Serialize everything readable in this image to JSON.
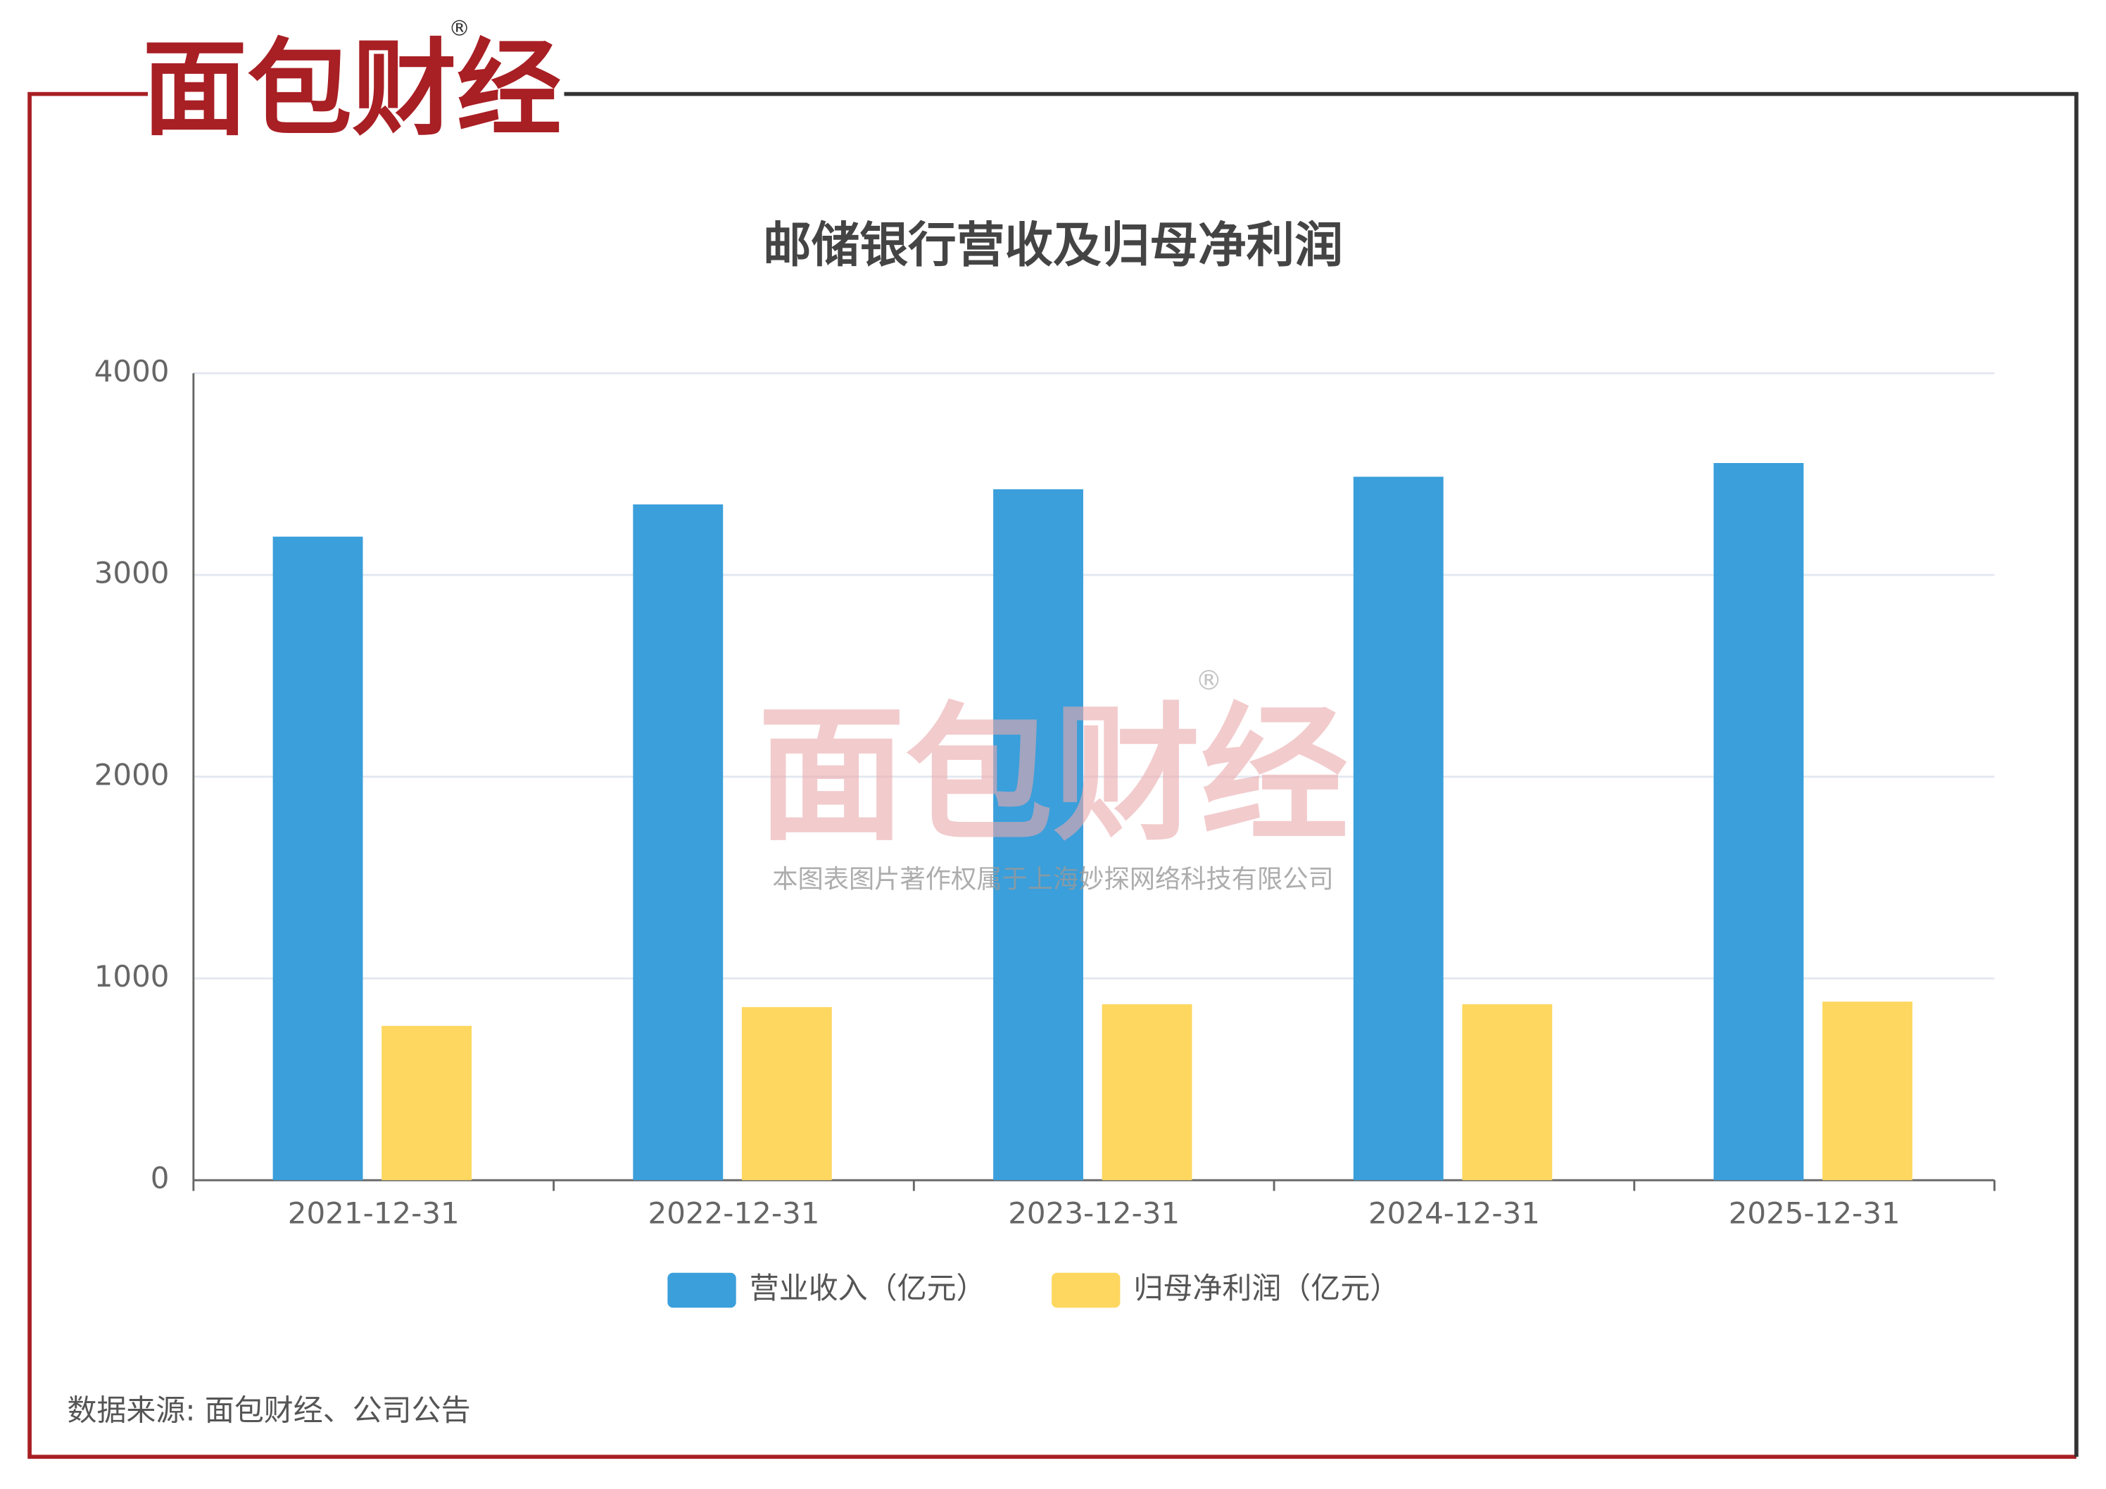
{
  "logo": "面包财经",
  "logo_mark": "®",
  "watermark": {
    "logo": "面包财经",
    "mark": "®",
    "notice": "本图表图片著作权属于上海妙探网络科技有限公司"
  },
  "source": "数据来源: 面包财经、公司公告",
  "chart_data": {
    "type": "bar",
    "title": "邮储银行营收及归母净利润",
    "categories": [
      "2021-12-31",
      "2022-12-31",
      "2023-12-31",
      "2024-12-31",
      "2025-12-31"
    ],
    "series": [
      {
        "name": "营业收入（亿元）",
        "color": "#3a9fdb",
        "values": [
          3190,
          3350,
          3425,
          3487,
          3555
        ]
      },
      {
        "name": "归母净利润（亿元）",
        "color": "#fdd75f",
        "values": [
          765,
          858,
          872,
          872,
          885
        ]
      }
    ],
    "ylim": [
      0,
      4000
    ],
    "yticks": [
      0,
      1000,
      2000,
      3000,
      4000
    ],
    "grid": true,
    "legend": "bottom"
  }
}
